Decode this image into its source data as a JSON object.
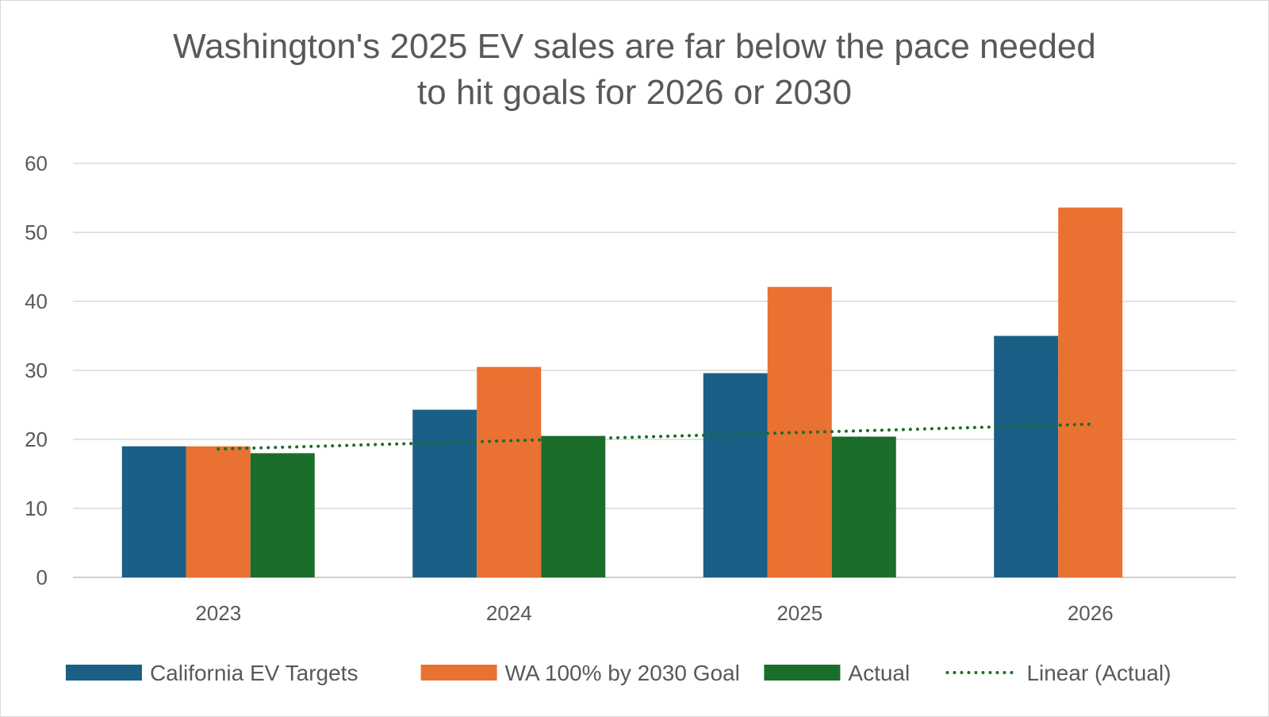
{
  "chart_data": {
    "type": "bar",
    "title_lines": [
      "Washington's 2025 EV sales are far below the pace needed",
      "to hit goals for 2026 or 2030"
    ],
    "categories": [
      "2023",
      "2024",
      "2025",
      "2026"
    ],
    "series": [
      {
        "name": "California EV Targets",
        "color": "#1a5f85",
        "values": [
          19,
          24.3,
          29.6,
          35
        ]
      },
      {
        "name": "WA 100% by 2030 Goal",
        "color": "#e97132",
        "values": [
          19,
          30.5,
          42.1,
          53.6
        ]
      },
      {
        "name": "Actual",
        "color": "#1b6d2a",
        "values": [
          18,
          20.5,
          20.4,
          null
        ]
      }
    ],
    "trendline": {
      "name": "Linear (Actual)",
      "color": "#1b6d2a",
      "style": "dotted",
      "start": 18.6,
      "end": 22.2
    },
    "ylim": [
      0,
      60
    ],
    "yticks": [
      0,
      10,
      20,
      30,
      40,
      50,
      60
    ],
    "grid": true,
    "legend_position": "bottom"
  }
}
